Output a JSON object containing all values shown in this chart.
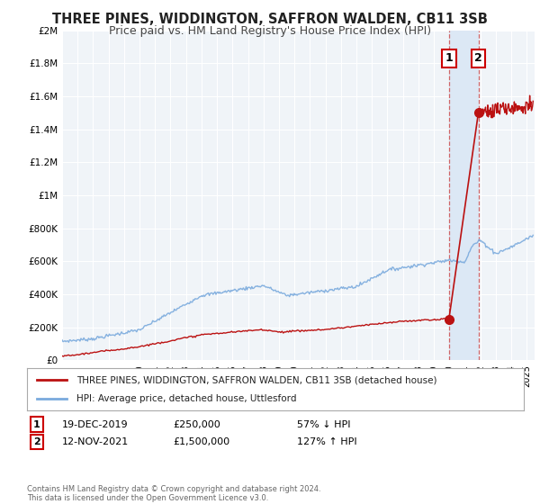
{
  "title": "THREE PINES, WIDDINGTON, SAFFRON WALDEN, CB11 3SB",
  "subtitle": "Price paid vs. HM Land Registry's House Price Index (HPI)",
  "title_fontsize": 10.5,
  "subtitle_fontsize": 9,
  "hpi_color": "#7aaadd",
  "price_color": "#bb1111",
  "background_color": "#ffffff",
  "plot_bg_color": "#f0f4f8",
  "grid_color": "#ffffff",
  "ylim": [
    0,
    2000000
  ],
  "yticks": [
    0,
    200000,
    400000,
    600000,
    800000,
    1000000,
    1200000,
    1400000,
    1600000,
    1800000,
    2000000
  ],
  "ytick_labels": [
    "£0",
    "£200K",
    "£400K",
    "£600K",
    "£800K",
    "£1M",
    "£1.2M",
    "£1.4M",
    "£1.6M",
    "£1.8M",
    "£2M"
  ],
  "legend_label_red": "THREE PINES, WIDDINGTON, SAFFRON WALDEN, CB11 3SB (detached house)",
  "legend_label_blue": "HPI: Average price, detached house, Uttlesford",
  "annotation1_date": "19-DEC-2019",
  "annotation1_price": "£250,000",
  "annotation1_hpi": "57% ↓ HPI",
  "annotation2_date": "12-NOV-2021",
  "annotation2_price": "£1,500,000",
  "annotation2_hpi": "127% ↑ HPI",
  "footer": "Contains HM Land Registry data © Crown copyright and database right 2024.\nThis data is licensed under the Open Government Licence v3.0.",
  "point1_x": 2019.97,
  "point1_y": 250000,
  "point2_x": 2021.87,
  "point2_y": 1500000,
  "xlim_left": 1995,
  "xlim_right": 2025.5,
  "span_color": "#dce8f5",
  "vline_color": "#cc4444",
  "box_edge_color": "#cc0000"
}
